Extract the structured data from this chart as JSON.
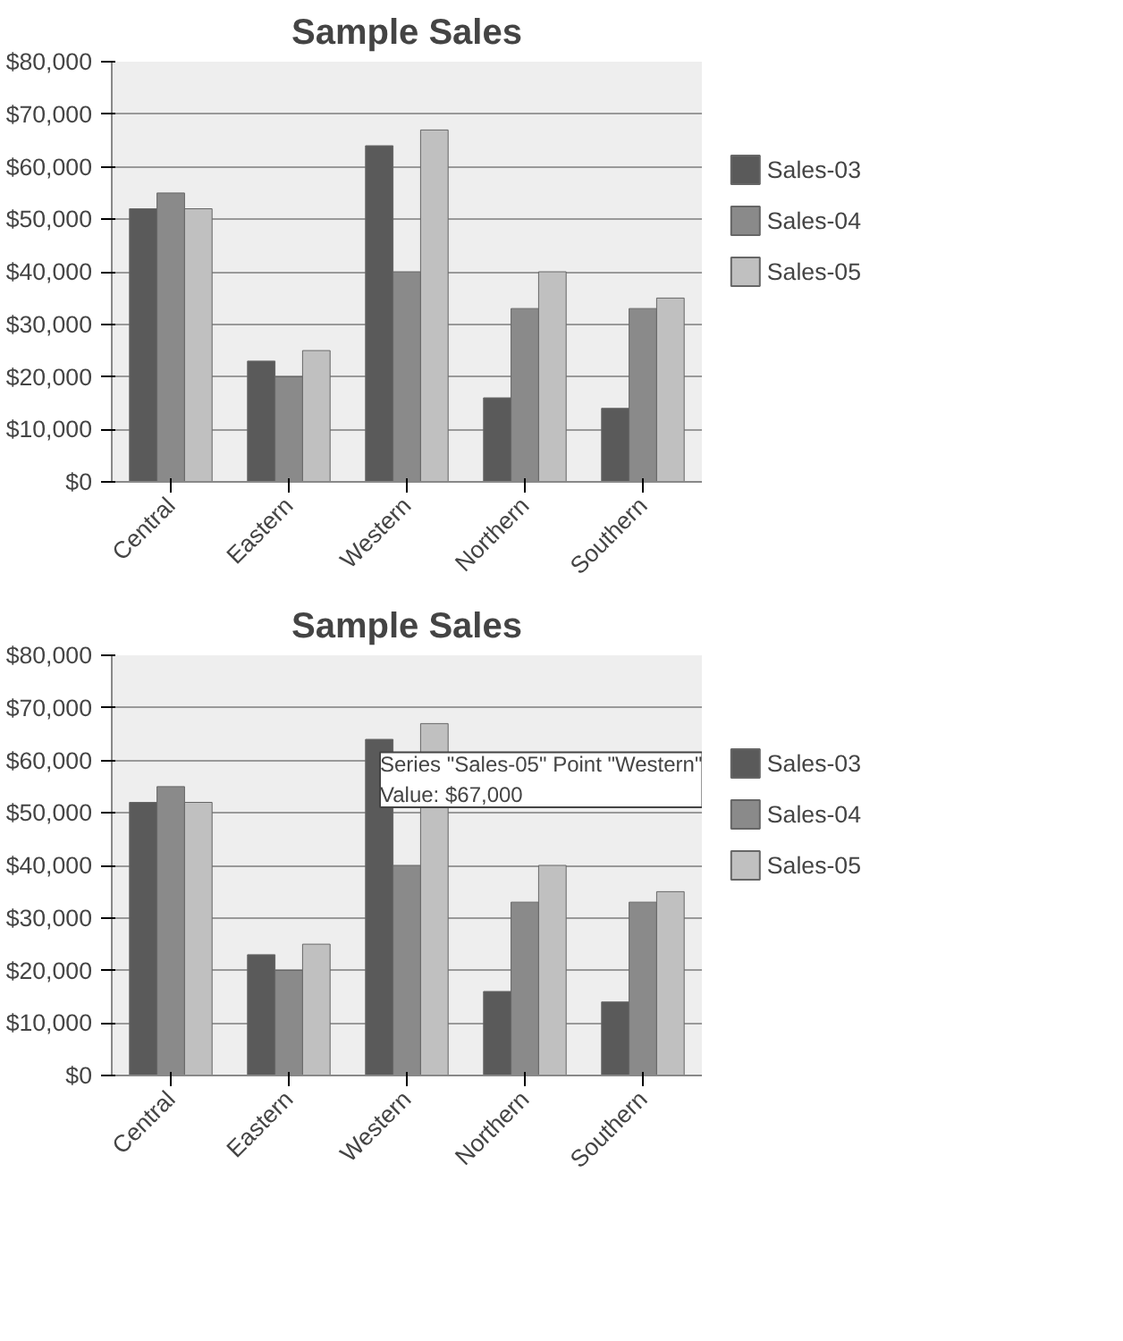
{
  "chart_data": [
    {
      "type": "bar",
      "title": "Sample Sales",
      "categories": [
        "Central",
        "Eastern",
        "Western",
        "Northern",
        "Southern"
      ],
      "series": [
        {
          "name": "Sales-03",
          "color": "#5a5a5a",
          "values": [
            52000,
            23000,
            64000,
            16000,
            14000
          ]
        },
        {
          "name": "Sales-04",
          "color": "#8a8a8a",
          "values": [
            55000,
            20000,
            40000,
            33000,
            33000
          ]
        },
        {
          "name": "Sales-05",
          "color": "#c0c0c0",
          "values": [
            52000,
            25000,
            67000,
            40000,
            35000
          ]
        }
      ],
      "ylim": [
        0,
        80000
      ],
      "yticks": [
        {
          "value": 0,
          "label": "$0"
        },
        {
          "value": 10000,
          "label": "$10,000"
        },
        {
          "value": 20000,
          "label": "$20,000"
        },
        {
          "value": 30000,
          "label": "$30,000"
        },
        {
          "value": 40000,
          "label": "$40,000"
        },
        {
          "value": 50000,
          "label": "$50,000"
        },
        {
          "value": 60000,
          "label": "$60,000"
        },
        {
          "value": 70000,
          "label": "$70,000"
        },
        {
          "value": 80000,
          "label": "$80,000"
        }
      ],
      "grid": "y",
      "legend": "right"
    },
    {
      "type": "bar",
      "title": "Sample Sales",
      "categories": [
        "Central",
        "Eastern",
        "Western",
        "Northern",
        "Southern"
      ],
      "series": [
        {
          "name": "Sales-03",
          "color": "#5a5a5a",
          "values": [
            52000,
            23000,
            64000,
            16000,
            14000
          ]
        },
        {
          "name": "Sales-04",
          "color": "#8a8a8a",
          "values": [
            55000,
            20000,
            40000,
            33000,
            33000
          ]
        },
        {
          "name": "Sales-05",
          "color": "#c0c0c0",
          "values": [
            52000,
            25000,
            67000,
            40000,
            35000
          ]
        }
      ],
      "ylim": [
        0,
        80000
      ],
      "yticks": [
        {
          "value": 0,
          "label": "$0"
        },
        {
          "value": 10000,
          "label": "$10,000"
        },
        {
          "value": 20000,
          "label": "$20,000"
        },
        {
          "value": 30000,
          "label": "$30,000"
        },
        {
          "value": 40000,
          "label": "$40,000"
        },
        {
          "value": 50000,
          "label": "$50,000"
        },
        {
          "value": 60000,
          "label": "$60,000"
        },
        {
          "value": 70000,
          "label": "$70,000"
        },
        {
          "value": 80000,
          "label": "$80,000"
        }
      ],
      "grid": "y",
      "legend": "right",
      "annotations": [
        "Series \"Sales-05\" Point \"Western\"\nValue: $67,000"
      ]
    }
  ]
}
